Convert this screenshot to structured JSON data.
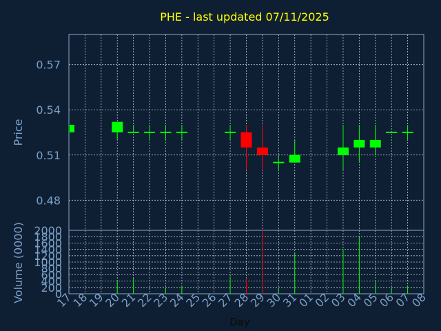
{
  "chart_data": {
    "type": "candlestick",
    "title": "PHE - last updated 07/11/2025",
    "xlabel": "Day",
    "ylabel_price": "Price",
    "ylabel_volume": "Volume (0000)",
    "x_ticks": [
      "17",
      "18",
      "19",
      "20",
      "21",
      "22",
      "23",
      "24",
      "25",
      "26",
      "27",
      "28",
      "29",
      "30",
      "31",
      "01",
      "02",
      "03",
      "04",
      "05",
      "06",
      "07",
      "08"
    ],
    "price_ylim": [
      0.46,
      0.59
    ],
    "price_ticks": [
      0.48,
      0.51,
      0.54,
      0.57
    ],
    "price_tick_labels": [
      "0.48",
      "0.51",
      "0.54",
      "0.57"
    ],
    "volume_ylim": [
      0,
      2000
    ],
    "volume_ticks": [
      0,
      200,
      400,
      600,
      800,
      1000,
      1200,
      1400,
      1600,
      1800,
      2000
    ],
    "volume_tick_labels": [
      "0",
      "200",
      "400",
      "600",
      "800",
      "1000",
      "1200",
      "1400",
      "1600",
      "1800",
      "2000"
    ],
    "grid": true,
    "colors": {
      "background": "#0f1f33",
      "title": "#ffff00",
      "axis_text": "#7aa0c8",
      "frame": "#8aa8c8",
      "grid": "#b8c8d8",
      "up": "#00ff00",
      "down": "#ff0000"
    },
    "candles": [
      {
        "x": "17",
        "open": 0.525,
        "high": 0.53,
        "low": 0.525,
        "close": 0.53,
        "volume": 0
      },
      {
        "x": "20",
        "open": 0.525,
        "high": 0.532,
        "low": 0.52,
        "close": 0.532,
        "volume": 420
      },
      {
        "x": "21",
        "open": 0.525,
        "high": 0.53,
        "low": 0.525,
        "close": 0.525,
        "volume": 500
      },
      {
        "x": "22",
        "open": 0.525,
        "high": 0.53,
        "low": 0.52,
        "close": 0.525,
        "volume": 0
      },
      {
        "x": "23",
        "open": 0.525,
        "high": 0.53,
        "low": 0.52,
        "close": 0.525,
        "volume": 150
      },
      {
        "x": "24",
        "open": 0.525,
        "high": 0.53,
        "low": 0.52,
        "close": 0.525,
        "volume": 250
      },
      {
        "x": "27",
        "open": 0.525,
        "high": 0.53,
        "low": 0.52,
        "close": 0.525,
        "volume": 550
      },
      {
        "x": "28",
        "open": 0.525,
        "high": 0.53,
        "low": 0.5,
        "close": 0.515,
        "volume": 500
      },
      {
        "x": "29",
        "open": 0.515,
        "high": 0.53,
        "low": 0.5,
        "close": 0.51,
        "volume": 2000
      },
      {
        "x": "30",
        "open": 0.505,
        "high": 0.51,
        "low": 0.5,
        "close": 0.505,
        "volume": 150
      },
      {
        "x": "31",
        "open": 0.505,
        "high": 0.52,
        "low": 0.505,
        "close": 0.51,
        "volume": 1300
      },
      {
        "x": "03",
        "open": 0.51,
        "high": 0.53,
        "low": 0.5,
        "close": 0.515,
        "volume": 1400
      },
      {
        "x": "04",
        "open": 0.515,
        "high": 0.53,
        "low": 0.505,
        "close": 0.52,
        "volume": 1800
      },
      {
        "x": "05",
        "open": 0.515,
        "high": 0.53,
        "low": 0.51,
        "close": 0.52,
        "volume": 400
      },
      {
        "x": "06",
        "open": 0.525,
        "high": 0.525,
        "low": 0.525,
        "close": 0.525,
        "volume": 200
      },
      {
        "x": "07",
        "open": 0.525,
        "high": 0.53,
        "low": 0.52,
        "close": 0.525,
        "volume": 250
      }
    ]
  }
}
